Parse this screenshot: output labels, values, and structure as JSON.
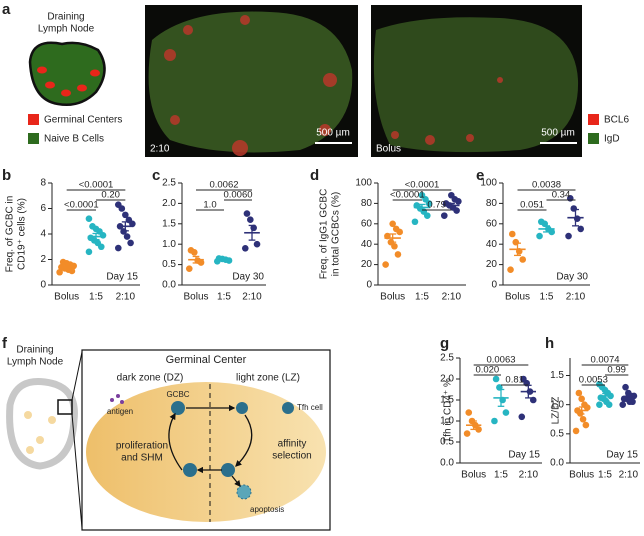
{
  "figure_a": {
    "label": "a",
    "schematic_title": [
      "Draining",
      "Lymph Node"
    ],
    "legend": [
      "Germinal Centers",
      "Naive B Cells"
    ],
    "image_left_label": "2:10",
    "image_right_label": "Bolus",
    "scale_bar": "500 µm",
    "stain_legend": [
      "BCL6",
      "IgD"
    ]
  },
  "figure_f": {
    "label": "f",
    "node_label": [
      "Draining",
      "Lymph Node"
    ],
    "title": "Germinal Center",
    "dark_zone": "dark zone (DZ)",
    "light_zone": "light zone (LZ)",
    "gcbc": "GCBC",
    "antigen": "antigen",
    "tfh": "Tfh cell",
    "proliferation": [
      "proliferation",
      "and SHM"
    ],
    "selection": [
      "affinity",
      "selection"
    ],
    "apoptosis": "apoptosis"
  },
  "chart_data": [
    {
      "type": "strip",
      "label": "b",
      "ylabel": [
        "Freq. of GCBC in",
        "CD19⁺ cells (%)"
      ],
      "categories": [
        "Bolus",
        "1:5",
        "2:10"
      ],
      "colors": [
        "#f28c28",
        "#26b5c2",
        "#2e3178"
      ],
      "points": [
        [
          1.0,
          1.1,
          1.2,
          1.3,
          1.4,
          1.5,
          1.6,
          1.7,
          1.8
        ],
        [
          2.6,
          3.0,
          3.3,
          3.5,
          3.7,
          3.9,
          4.2,
          4.4,
          4.6,
          5.2
        ],
        [
          2.9,
          3.3,
          3.8,
          4.2,
          4.6,
          4.8,
          5.1,
          5.5,
          6.0,
          6.3
        ]
      ],
      "means": [
        1.4,
        3.8,
        4.6
      ],
      "sems": [
        0.09,
        0.24,
        0.35
      ],
      "ylim": [
        0,
        8
      ],
      "yticks": [
        0,
        2,
        4,
        6,
        8
      ],
      "comparisons": [
        {
          "pair": [
            0,
            1
          ],
          "label": "<0.0001"
        },
        {
          "pair": [
            1,
            2
          ],
          "label": "0.20"
        },
        {
          "pair": [
            0,
            2
          ],
          "label": "<0.0001"
        }
      ],
      "annotation": "Day 15"
    },
    {
      "type": "strip",
      "label": "c",
      "categories": [
        "Bolus",
        "1:5",
        "2:10"
      ],
      "colors": [
        "#f28c28",
        "#26b5c2",
        "#2e3178"
      ],
      "points": [
        [
          0.4,
          0.55,
          0.6,
          0.8,
          0.85
        ],
        [
          0.58,
          0.6,
          0.62,
          0.64,
          0.65
        ],
        [
          0.9,
          1.0,
          1.4,
          1.6,
          1.75
        ]
      ],
      "means": [
        0.62,
        0.62,
        1.28
      ],
      "sems": [
        0.08,
        0.02,
        0.18
      ],
      "ylim": [
        0,
        2.5
      ],
      "yticks": [
        {
          "value": 0,
          "label": "0.0"
        },
        0.5,
        {
          "value": 1,
          "label": "1.0"
        },
        1.5,
        {
          "value": 2,
          "label": "2.0"
        },
        2.5
      ],
      "comparisons": [
        {
          "pair": [
            0,
            1
          ],
          "label": "1.0"
        },
        {
          "pair": [
            1,
            2
          ],
          "label": "0.0060"
        },
        {
          "pair": [
            0,
            2
          ],
          "label": "0.0062"
        }
      ],
      "annotation": "Day 30"
    },
    {
      "type": "strip",
      "label": "d",
      "ylabel": [
        "Freq. of IgG1 GCBC",
        "in total GCBCs (%)"
      ],
      "categories": [
        "Bolus",
        "1:5",
        "2:10"
      ],
      "colors": [
        "#f28c28",
        "#26b5c2",
        "#2e3178"
      ],
      "points": [
        [
          20,
          30,
          38,
          42,
          48,
          52,
          55,
          60
        ],
        [
          62,
          68,
          72,
          75,
          78,
          80,
          84,
          88
        ],
        [
          68,
          73,
          76,
          78,
          80,
          82,
          84,
          88
        ]
      ],
      "means": [
        46,
        76,
        78
      ],
      "sems": [
        4,
        3,
        2
      ],
      "ylim": [
        0,
        100
      ],
      "yticks": [
        0,
        20,
        40,
        60,
        80,
        100
      ],
      "comparisons": [
        {
          "pair": [
            1,
            2
          ],
          "label": "0.79"
        },
        {
          "pair": [
            0,
            1
          ],
          "label": "<0.0001"
        },
        {
          "pair": [
            0,
            2
          ],
          "label": "<0.0001"
        }
      ]
    },
    {
      "type": "strip",
      "label": "e",
      "categories": [
        "Bolus",
        "1:5",
        "2:10"
      ],
      "colors": [
        "#f28c28",
        "#26b5c2",
        "#2e3178"
      ],
      "points": [
        [
          15,
          25,
          33,
          42,
          50
        ],
        [
          48,
          52,
          55,
          60,
          62
        ],
        [
          48,
          55,
          65,
          75,
          85
        ]
      ],
      "means": [
        35,
        55,
        66
      ],
      "sems": [
        6,
        3,
        8
      ],
      "ylim": [
        0,
        100
      ],
      "yticks": [
        0,
        20,
        40,
        60,
        80,
        100
      ],
      "comparisons": [
        {
          "pair": [
            0,
            1
          ],
          "label": "0.051"
        },
        {
          "pair": [
            1,
            2
          ],
          "label": "0.34"
        },
        {
          "pair": [
            0,
            2
          ],
          "label": "0.0038"
        }
      ],
      "annotation": "Day 30"
    },
    {
      "type": "strip",
      "label": "g",
      "ylabel": [
        "Tfh in CD4⁺ %"
      ],
      "categories": [
        "Bolus",
        "1:5",
        "2:10"
      ],
      "colors": [
        "#f28c28",
        "#26b5c2",
        "#2e3178"
      ],
      "points": [
        [
          0.7,
          0.8,
          0.9,
          1.0,
          1.2
        ],
        [
          1.0,
          1.2,
          1.5,
          1.8,
          2.0
        ],
        [
          1.1,
          1.5,
          1.7,
          1.9,
          2.0
        ]
      ],
      "means": [
        0.9,
        1.55,
        1.7
      ],
      "sems": [
        0.1,
        0.2,
        0.15
      ],
      "ylim": [
        0,
        2.5
      ],
      "yticks": [
        {
          "value": 0,
          "label": "0.0"
        },
        0.5,
        {
          "value": 1,
          "label": "1.0"
        },
        1.5,
        {
          "value": 2,
          "label": "2.0"
        },
        2.5
      ],
      "comparisons": [
        {
          "pair": [
            1,
            2
          ],
          "label": "0.81"
        },
        {
          "pair": [
            0,
            1
          ],
          "label": "0.020"
        },
        {
          "pair": [
            0,
            2
          ],
          "label": "0.0063"
        }
      ],
      "annotation": "Day 15"
    },
    {
      "type": "strip",
      "label": "h",
      "ylabel": [
        "LZ/DZ"
      ],
      "categories": [
        "Bolus",
        "1:5",
        "2:10"
      ],
      "colors": [
        "#f28c28",
        "#26b5c2",
        "#2e3178"
      ],
      "points": [
        [
          0.55,
          0.65,
          0.75,
          0.85,
          0.9,
          0.95,
          1.0,
          1.1,
          1.2
        ],
        [
          1.0,
          1.0,
          1.05,
          1.1,
          1.12,
          1.15,
          1.2,
          1.25,
          1.3,
          1.35
        ],
        [
          1.0,
          1.05,
          1.05,
          1.1,
          1.1,
          1.15,
          1.15,
          1.2,
          1.3
        ]
      ],
      "means": [
        0.9,
        1.15,
        1.13
      ],
      "sems": [
        0.06,
        0.04,
        0.03
      ],
      "ylim": [
        0,
        1.8
      ],
      "yticks": [
        {
          "value": 0,
          "label": "0.0"
        },
        0.5,
        {
          "value": 1,
          "label": "1.0"
        },
        1.5
      ],
      "comparisons": [
        {
          "pair": [
            0,
            1
          ],
          "label": "0.0053"
        },
        {
          "pair": [
            1,
            2
          ],
          "label": "0.99"
        },
        {
          "pair": [
            0,
            2
          ],
          "label": "0.0074"
        }
      ],
      "annotation": "Day 15"
    }
  ]
}
